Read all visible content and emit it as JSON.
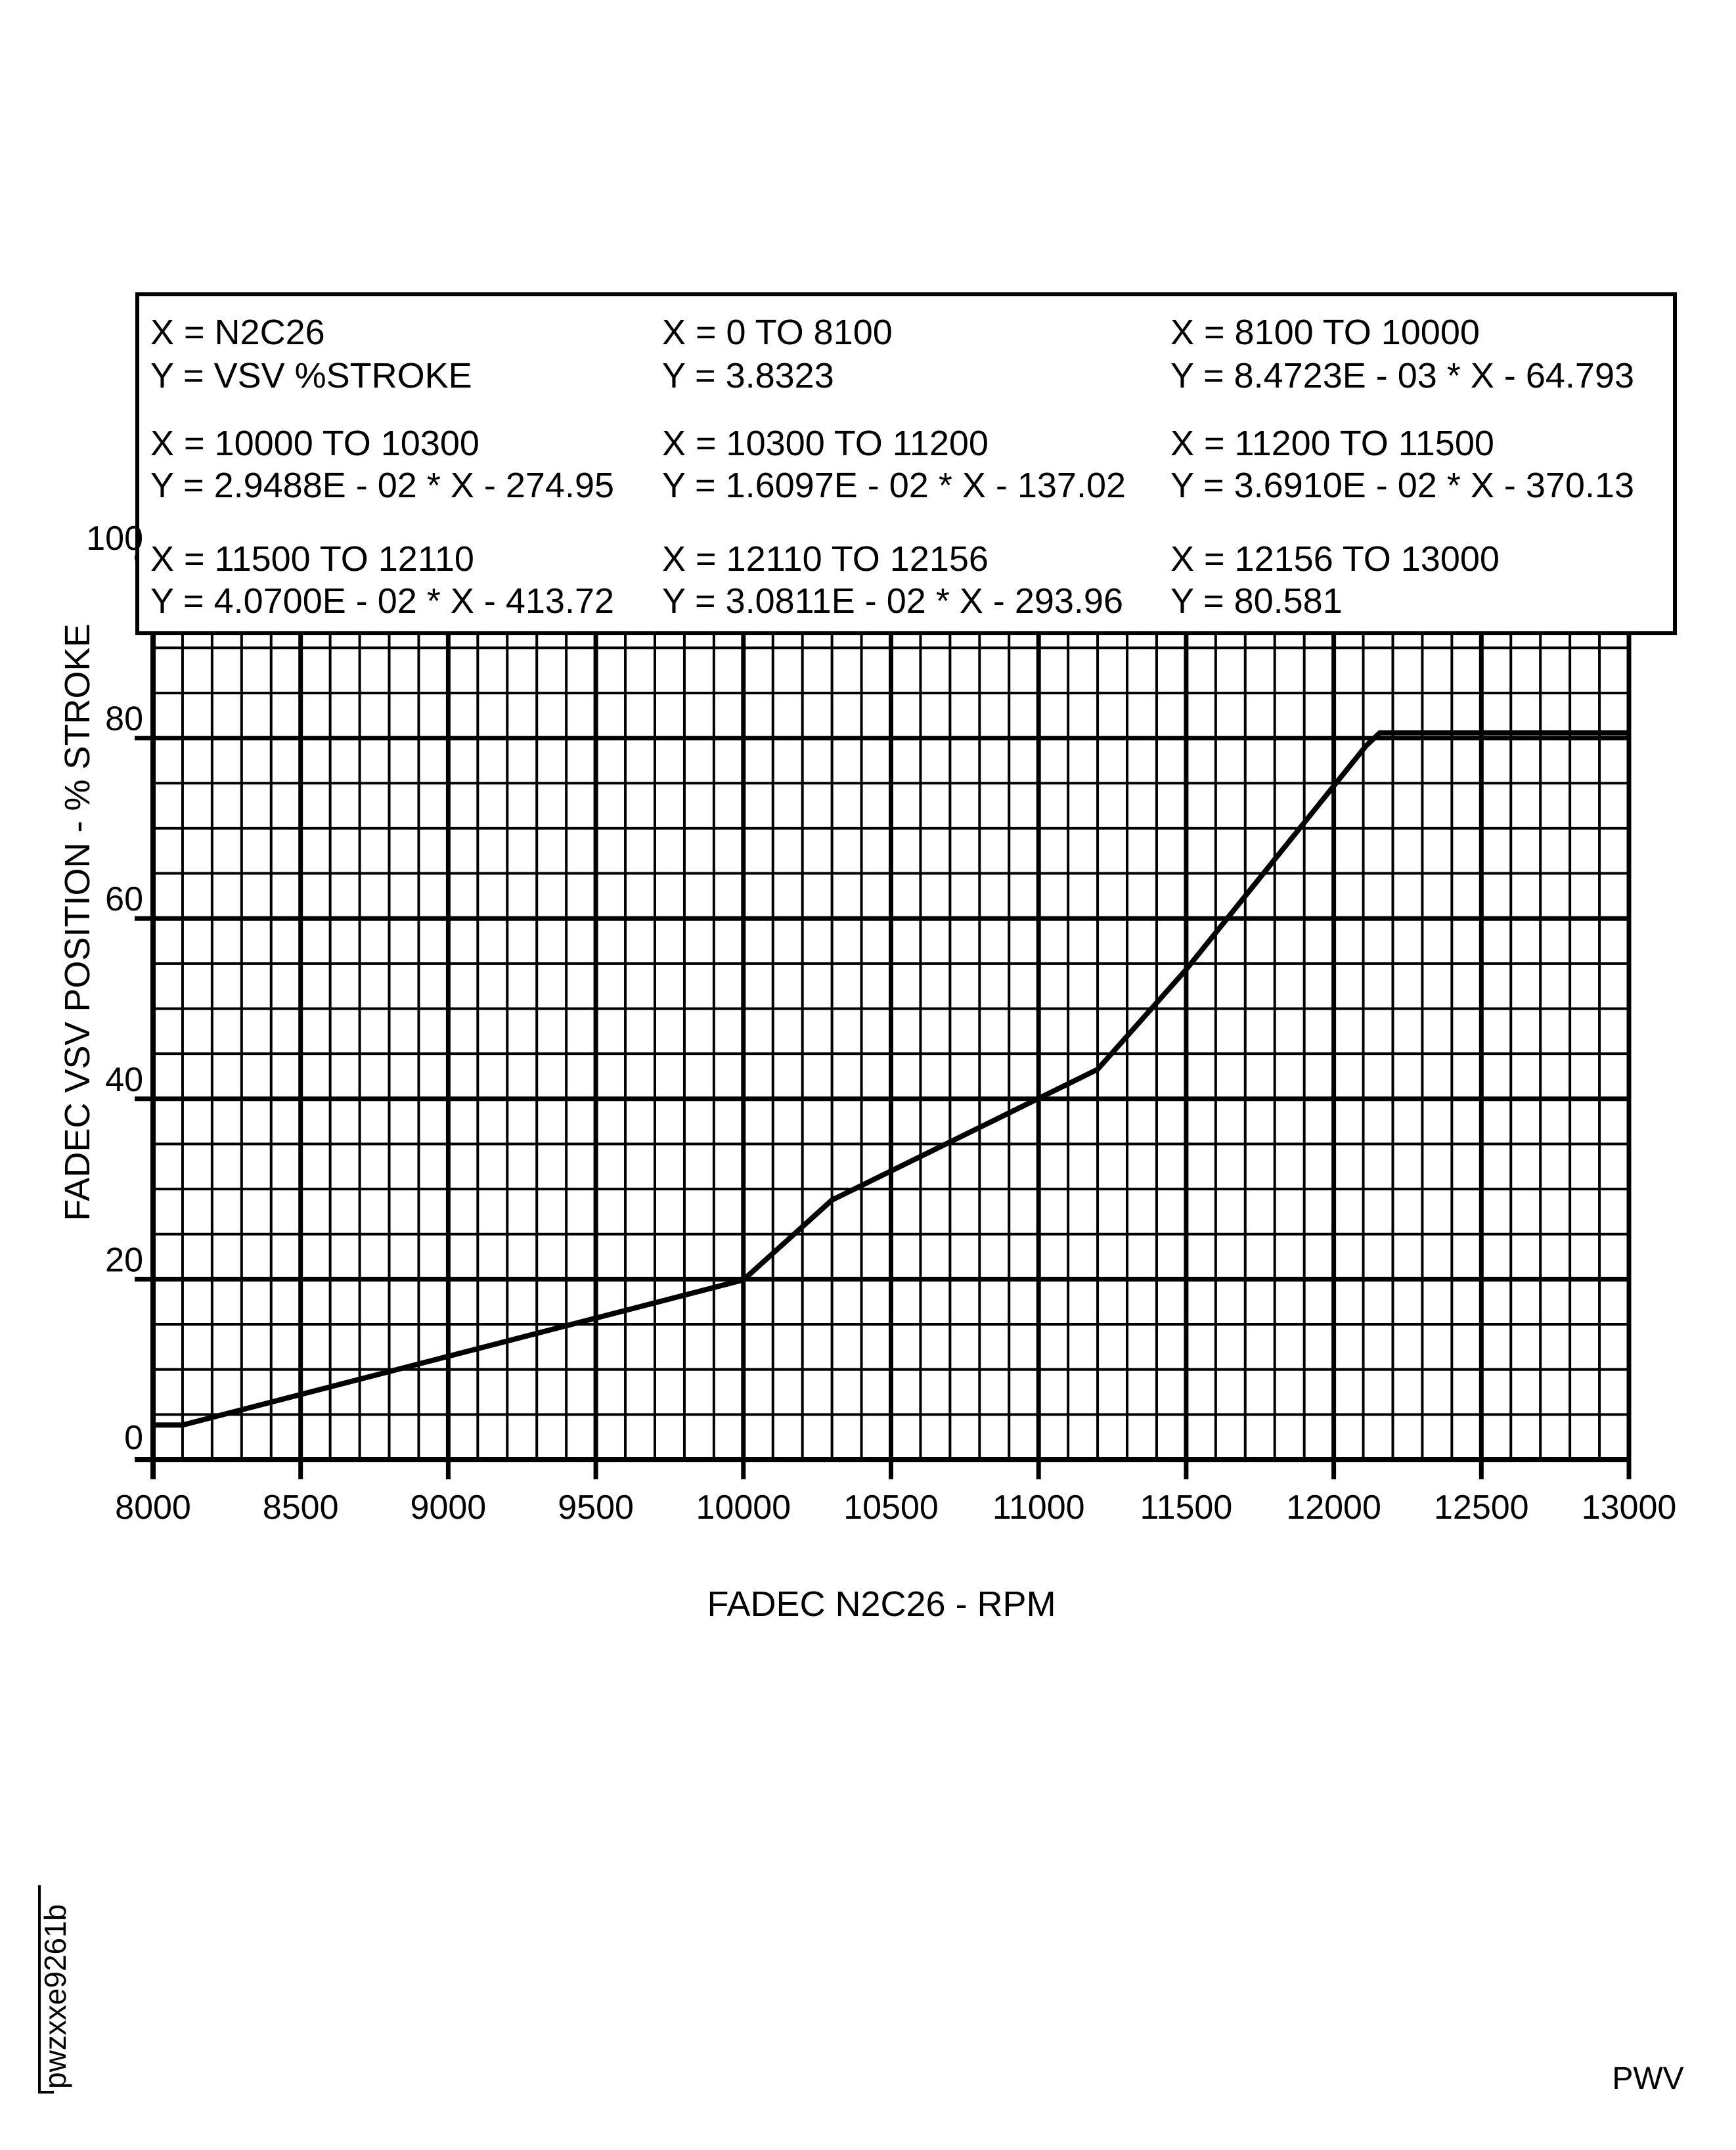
{
  "chart_data": {
    "type": "line",
    "xlabel": "FADEC N2C26 - RPM",
    "ylabel": "FADEC VSV POSITION - % STROKE",
    "xlim": [
      8000,
      13000
    ],
    "ylim": [
      0,
      100
    ],
    "x_ticks": [
      8000,
      8500,
      9000,
      9500,
      10000,
      10500,
      11000,
      11500,
      12000,
      12500,
      13000
    ],
    "x_tick_labels": [
      "8000",
      "8500",
      "9000",
      "9500",
      "10000",
      "10500",
      "11000",
      "11500",
      "12000",
      "12500",
      "13000"
    ],
    "y_ticks": [
      0,
      20,
      40,
      60,
      80,
      100
    ],
    "y_tick_labels": [
      "0",
      "20",
      "40",
      "60",
      "80",
      "100"
    ],
    "x_minor_step": 100,
    "y_minor_step": 5,
    "grid": true,
    "series": [
      {
        "name": "VSV %STROKE",
        "color": "#000000",
        "x": [
          8000,
          8100,
          10000,
          10300,
          11200,
          11500,
          12110,
          12156,
          13000
        ],
        "y": [
          3.8323,
          3.8323,
          19.93,
          28.78,
          43.27,
          54.34,
          79.16,
          80.58,
          80.581
        ]
      }
    ],
    "legend_box": {
      "placement": "top",
      "rows": [
        [
          "X = N2C26",
          "X = 0 TO 8100",
          "X = 8100 TO 10000"
        ],
        [
          "Y = VSV %STROKE",
          "Y = 3.8323",
          "Y = 8.4723E - 03 * X - 64.793"
        ],
        [
          "X = 10000 TO 10300",
          "X = 10300 TO 11200",
          "X = 11200 TO 11500"
        ],
        [
          "Y = 2.9488E - 02 * X - 274.95",
          "Y = 1.6097E - 02 * X - 137.02",
          "Y = 3.6910E - 02 * X - 370.13"
        ],
        [
          "X = 11500 TO 12110",
          "X = 12110 TO 12156",
          "X = 12156 TO 13000"
        ],
        [
          "Y = 4.0700E - 02 * X - 413.72",
          "Y = 3.0811E - 02 * X - 293.96",
          "Y = 80.581"
        ]
      ]
    }
  },
  "figure_id": "pwzxxe9261b",
  "footer_code": "PWV"
}
